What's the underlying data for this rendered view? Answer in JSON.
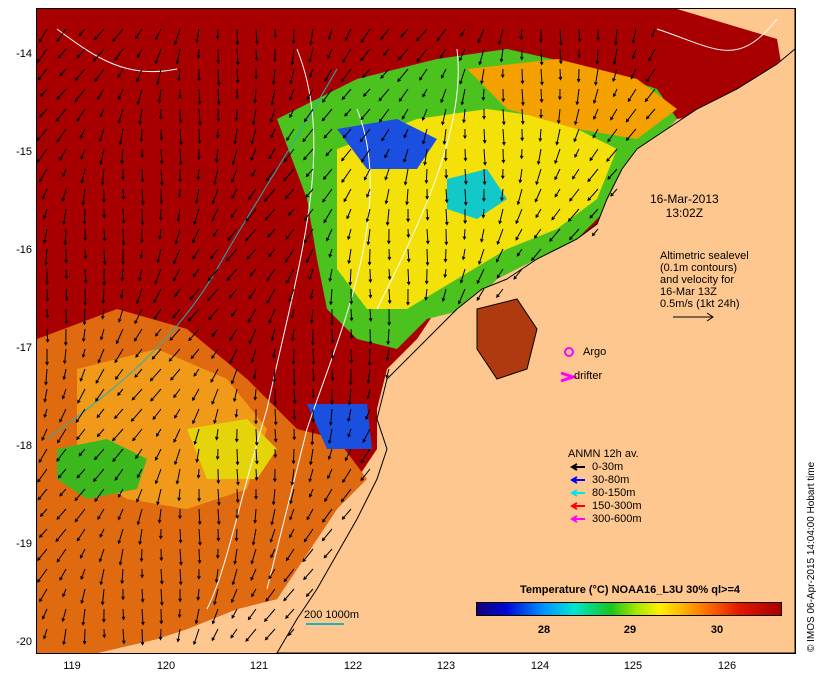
{
  "map": {
    "y_ticks": [
      "-14",
      "-15",
      "-16",
      "-17",
      "-18",
      "-19",
      "-20"
    ],
    "x_ticks": [
      "119",
      "120",
      "121",
      "122",
      "123",
      "124",
      "125",
      "126"
    ],
    "date_line1": "16-Mar-2013",
    "date_line2": "13:02Z",
    "altimetry_lines": [
      "Altimetric sealevel",
      "(0.1m contours)",
      "and velocity for",
      "16-Mar 13Z",
      "0.5m/s (1kt 24h)"
    ],
    "argo_label": "Argo",
    "drifter_label": "drifter",
    "anmn_title": "ANMN 12h av.",
    "anmn_items": [
      {
        "label": "0-30m",
        "color": "#000000"
      },
      {
        "label": "30-80m",
        "color": "#0000ff"
      },
      {
        "label": "80-150m",
        "color": "#00e5e5"
      },
      {
        "label": "150-300m",
        "color": "#ff0000"
      },
      {
        "label": "300-600m",
        "color": "#ff00ff"
      }
    ],
    "colorbar_title": "Temperature (°C) NOAA16_L3U 30% ql>=4",
    "colorbar_ticks": [
      "28",
      "29",
      "30"
    ],
    "scale_label": "200  1000m",
    "credit": "© IMOS 06-Apr-2015 14:04:00 Hobart time",
    "colors": {
      "land": "#fdc78f",
      "hot": "#a80000",
      "warm": "#e85a00",
      "orange": "#f39200",
      "yellow": "#f5e600",
      "green": "#22c21e",
      "cyan": "#12c8c8",
      "blue": "#1040e0",
      "contour": "#ffffff",
      "isobath": "#1fb1bf"
    }
  }
}
